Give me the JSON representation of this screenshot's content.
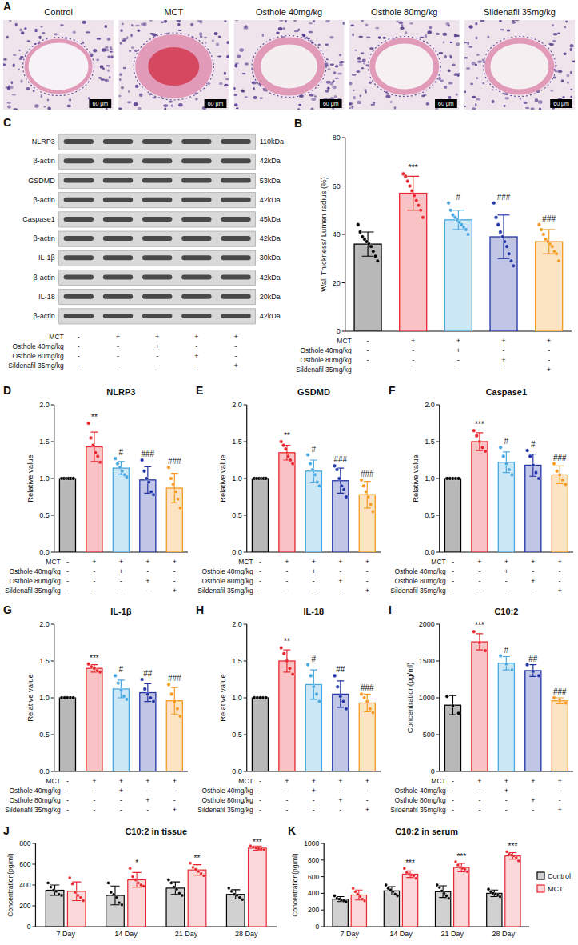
{
  "images": {
    "letter": "A",
    "labels": [
      "Control",
      "MCT",
      "Osthole 40mg/kg",
      "Osthole 80mg/kg",
      "Sildenafil 35mg/kg"
    ],
    "scale_bar": "60 μm"
  },
  "blot": {
    "letter": "C",
    "rows": [
      {
        "protein": "NLRP3",
        "size": "110kDa"
      },
      {
        "protein": "β-actin",
        "size": "42kDa"
      },
      {
        "protein": "GSDMD",
        "size": "53kDa"
      },
      {
        "protein": "β-actin",
        "size": "42kDa"
      },
      {
        "protein": "Caspase1",
        "size": "45kDa"
      },
      {
        "protein": "β-actin",
        "size": "42kDa"
      },
      {
        "protein": "IL-1β",
        "size": "30kDa"
      },
      {
        "protein": "β-actin",
        "size": "42kDa"
      },
      {
        "protein": "IL-18",
        "size": "20kDa"
      },
      {
        "protein": "β-actin",
        "size": "42kDa"
      }
    ]
  },
  "treatment_table": {
    "rows": [
      {
        "label": "MCT",
        "signs": [
          "-",
          "+",
          "+",
          "+",
          "+"
        ]
      },
      {
        "label": "Osthole 40mg/kg",
        "signs": [
          "-",
          "-",
          "+",
          "-",
          "-"
        ]
      },
      {
        "label": "Osthole 80mg/kg",
        "signs": [
          "-",
          "-",
          "-",
          "+",
          "-"
        ]
      },
      {
        "label": "Sildenafil 35mg/kg",
        "signs": [
          "-",
          "-",
          "-",
          "-",
          "+"
        ]
      }
    ]
  },
  "chart_data": [
    {
      "letter": "B",
      "type": "bar",
      "y_label": "Wall Thickness/ Lumen radius (%)",
      "categories": [
        null,
        null,
        null,
        null,
        null
      ],
      "values": [
        36,
        57,
        46,
        39,
        37
      ],
      "errors": [
        5,
        7,
        4,
        9,
        5
      ],
      "points": [
        [
          44,
          41,
          39,
          38,
          37,
          36,
          35,
          33,
          31,
          29
        ],
        [
          65,
          64,
          62,
          60,
          58,
          56,
          54,
          52,
          50,
          47
        ],
        [
          53,
          50,
          48,
          47,
          46,
          45,
          44,
          43,
          42,
          40
        ],
        [
          53,
          47,
          44,
          41,
          39,
          37,
          35,
          32,
          29,
          27
        ],
        [
          44,
          42,
          40,
          38,
          37,
          36,
          35,
          33,
          32,
          29
        ]
      ],
      "significance": [
        null,
        "***",
        "#",
        "###",
        "###"
      ],
      "colors": [
        "#000000",
        "#e8262e",
        "#4aa8e0",
        "#2233a5",
        "#f39b24"
      ],
      "ylim": [
        0,
        80
      ],
      "yticks": [
        0,
        20,
        40,
        60,
        80
      ]
    },
    {
      "letter": "D",
      "type": "bar",
      "title": "NLRP3",
      "y_label": "Relative value",
      "categories": [
        null,
        null,
        null,
        null,
        null
      ],
      "values": [
        1.0,
        1.43,
        1.14,
        0.98,
        0.87
      ],
      "errors": [
        0,
        0.2,
        0.09,
        0.18,
        0.2
      ],
      "points": [
        [
          1,
          1,
          1,
          1,
          1,
          1
        ],
        [
          1.75,
          1.55,
          1.45,
          1.35,
          1.3,
          1.22
        ],
        [
          1.27,
          1.2,
          1.15,
          1.1,
          1.05,
          1.02
        ],
        [
          1.25,
          1.1,
          1.0,
          0.95,
          0.82,
          0.78
        ],
        [
          1.15,
          1.0,
          0.92,
          0.82,
          0.72,
          0.6
        ]
      ],
      "significance": [
        null,
        "**",
        "#",
        "###",
        "###"
      ],
      "colors": [
        "#000000",
        "#e8262e",
        "#4aa8e0",
        "#2233a5",
        "#f39b24"
      ],
      "ylim": [
        0,
        2
      ],
      "yticks": [
        {
          "value": 0,
          "label": "0.0"
        },
        {
          "value": 0.5,
          "label": "0.5"
        },
        {
          "value": 1,
          "label": "1.0"
        },
        {
          "value": 1.5,
          "label": "1.5"
        },
        {
          "value": 2,
          "label": "2.0"
        }
      ]
    },
    {
      "letter": "E",
      "type": "bar",
      "title": "GSDMD",
      "y_label": "Relative value",
      "categories": [
        null,
        null,
        null,
        null,
        null
      ],
      "values": [
        1.0,
        1.35,
        1.1,
        0.97,
        0.78
      ],
      "errors": [
        0,
        0.1,
        0.15,
        0.17,
        0.18
      ],
      "points": [
        [
          1,
          1,
          1,
          1,
          1,
          1
        ],
        [
          1.5,
          1.45,
          1.4,
          1.3,
          1.25,
          1.2
        ],
        [
          1.32,
          1.2,
          1.12,
          1.05,
          0.95,
          0.9
        ],
        [
          1.17,
          1.12,
          1.0,
          0.9,
          0.85,
          0.75
        ],
        [
          0.98,
          0.9,
          0.82,
          0.75,
          0.65,
          0.55
        ]
      ],
      "significance": [
        null,
        "**",
        "#",
        "###",
        "###"
      ],
      "colors": [
        "#000000",
        "#e8262e",
        "#4aa8e0",
        "#2233a5",
        "#f39b24"
      ],
      "ylim": [
        0,
        2
      ],
      "yticks": [
        {
          "value": 0,
          "label": "0.0"
        },
        {
          "value": 0.5,
          "label": "0.5"
        },
        {
          "value": 1,
          "label": "1.0"
        },
        {
          "value": 1.5,
          "label": "1.5"
        },
        {
          "value": 2,
          "label": "2.0"
        }
      ]
    },
    {
      "letter": "F",
      "type": "bar",
      "title": "Caspase1",
      "y_label": "Relative value",
      "categories": [
        null,
        null,
        null,
        null,
        null
      ],
      "values": [
        1.0,
        1.5,
        1.22,
        1.18,
        1.05
      ],
      "errors": [
        0,
        0.12,
        0.14,
        0.15,
        0.12
      ],
      "points": [
        [
          1,
          1,
          1,
          1,
          1
        ],
        [
          1.65,
          1.58,
          1.5,
          1.42,
          1.37
        ],
        [
          1.42,
          1.3,
          1.2,
          1.12,
          1.05
        ],
        [
          1.38,
          1.3,
          1.18,
          1.08,
          1.0
        ],
        [
          1.2,
          1.1,
          1.05,
          0.98,
          0.92
        ]
      ],
      "significance": [
        null,
        "***",
        "#",
        "#",
        "###"
      ],
      "colors": [
        "#000000",
        "#e8262e",
        "#4aa8e0",
        "#2233a5",
        "#f39b24"
      ],
      "ylim": [
        0,
        2
      ],
      "yticks": [
        {
          "value": 0,
          "label": "0.0"
        },
        {
          "value": 0.5,
          "label": "0.5"
        },
        {
          "value": 1,
          "label": "1.0"
        },
        {
          "value": 1.5,
          "label": "1.5"
        },
        {
          "value": 2,
          "label": "2.0"
        }
      ]
    },
    {
      "letter": "G",
      "type": "bar",
      "title": "IL-1β",
      "y_label": "Relative value",
      "categories": [
        null,
        null,
        null,
        null,
        null
      ],
      "values": [
        1.0,
        1.4,
        1.12,
        1.07,
        0.96
      ],
      "errors": [
        0,
        0.05,
        0.12,
        0.12,
        0.18
      ],
      "points": [
        [
          1,
          1,
          1,
          1,
          1
        ],
        [
          1.46,
          1.42,
          1.4,
          1.37,
          1.35
        ],
        [
          1.3,
          1.2,
          1.1,
          1.02,
          0.98
        ],
        [
          1.25,
          1.12,
          1.05,
          1.0,
          0.95
        ],
        [
          1.18,
          1.05,
          0.95,
          0.85,
          0.75
        ]
      ],
      "significance": [
        null,
        "***",
        "#",
        "##",
        "###"
      ],
      "colors": [
        "#000000",
        "#e8262e",
        "#4aa8e0",
        "#2233a5",
        "#f39b24"
      ],
      "ylim": [
        0,
        2
      ],
      "yticks": [
        {
          "value": 0,
          "label": "0.0"
        },
        {
          "value": 0.5,
          "label": "0.5"
        },
        {
          "value": 1,
          "label": "1.0"
        },
        {
          "value": 1.5,
          "label": "1.5"
        },
        {
          "value": 2,
          "label": "2.0"
        }
      ]
    },
    {
      "letter": "H",
      "type": "bar",
      "title": "IL-18",
      "y_label": "Relative value",
      "categories": [
        null,
        null,
        null,
        null,
        null
      ],
      "values": [
        1.0,
        1.5,
        1.18,
        1.05,
        0.93
      ],
      "errors": [
        0,
        0.15,
        0.2,
        0.18,
        0.12
      ],
      "points": [
        [
          1,
          1,
          1,
          1,
          1
        ],
        [
          1.68,
          1.6,
          1.5,
          1.4,
          1.32
        ],
        [
          1.45,
          1.3,
          1.15,
          1.05,
          0.95
        ],
        [
          1.3,
          1.15,
          1.02,
          0.95,
          0.85
        ],
        [
          1.05,
          1.0,
          0.95,
          0.85,
          0.8
        ]
      ],
      "significance": [
        null,
        "**",
        "#",
        "##",
        "###"
      ],
      "colors": [
        "#000000",
        "#e8262e",
        "#4aa8e0",
        "#2233a5",
        "#f39b24"
      ],
      "ylim": [
        0,
        2
      ],
      "yticks": [
        {
          "value": 0,
          "label": "0.0"
        },
        {
          "value": 0.5,
          "label": "0.5"
        },
        {
          "value": 1,
          "label": "1.0"
        },
        {
          "value": 1.5,
          "label": "1.5"
        },
        {
          "value": 2,
          "label": "2.0"
        }
      ]
    },
    {
      "letter": "I",
      "type": "bar",
      "title": "C10:2",
      "y_label": "Concentration(pg/ml)",
      "categories": [
        null,
        null,
        null,
        null,
        null
      ],
      "values": [
        900,
        1760,
        1470,
        1370,
        960
      ],
      "errors": [
        130,
        110,
        90,
        80,
        40
      ],
      "points": [
        [
          1020,
          890,
          790
        ],
        [
          1900,
          1750,
          1640
        ],
        [
          1570,
          1460,
          1380
        ],
        [
          1450,
          1360,
          1300
        ],
        [
          1000,
          960,
          930
        ]
      ],
      "significance": [
        null,
        "***",
        "#",
        "##",
        "###"
      ],
      "colors": [
        "#000000",
        "#e8262e",
        "#4aa8e0",
        "#2233a5",
        "#f39b24"
      ],
      "ylim": [
        0,
        2000
      ],
      "yticks": [
        0,
        500,
        1000,
        1500,
        2000
      ]
    },
    {
      "letter": "J",
      "type": "bar",
      "title": "C10:2 in tissue",
      "y_label": "Concentration(pg/ml)",
      "categories": [
        "7 Day",
        "14 Day",
        "21 Day",
        "28 Day"
      ],
      "series": [
        {
          "color": "#000000",
          "values": [
            350,
            300,
            370,
            310
          ],
          "errors": [
            50,
            90,
            60,
            45
          ],
          "points": [
            [
              420,
              380,
              350,
              340,
              310,
              300
            ],
            [
              420,
              330,
              310,
              280,
              230,
              210
            ],
            [
              450,
              420,
              380,
              360,
              320,
              300
            ],
            [
              370,
              340,
              310,
              300,
              280,
              260
            ]
          ]
        },
        {
          "color": "#e8262e",
          "values": [
            340,
            450,
            545,
            755
          ],
          "errors": [
            90,
            70,
            50,
            20
          ],
          "points": [
            [
              470,
              410,
              330,
              300,
              280,
              250
            ],
            [
              560,
              480,
              450,
              420,
              400,
              390
            ],
            [
              610,
              570,
              550,
              530,
              510,
              490
            ],
            [
              775,
              765,
              755,
              750,
              745,
              740
            ]
          ],
          "significance": [
            null,
            "*",
            "**",
            "***"
          ]
        }
      ],
      "ylim": [
        0,
        800
      ],
      "yticks": [
        0,
        200,
        400,
        600,
        800
      ]
    },
    {
      "letter": "K",
      "type": "bar",
      "title": "C10:2 in serum",
      "y_label": "Concentration(pg/ml)",
      "categories": [
        "7 Day",
        "14 Day",
        "21 Day",
        "28 Day"
      ],
      "series": [
        {
          "name": "Control",
          "color": "#000000",
          "values": [
            330,
            430,
            420,
            400
          ],
          "errors": [
            30,
            50,
            70,
            40
          ],
          "points": [
            [
              370,
              340,
              330,
              320,
              310,
              300
            ],
            [
              500,
              460,
              440,
              420,
              390,
              370
            ],
            [
              500,
              470,
              430,
              400,
              370,
              340
            ],
            [
              450,
              420,
              400,
              390,
              380,
              360
            ]
          ]
        },
        {
          "name": "MCT",
          "color": "#e8262e",
          "values": [
            380,
            630,
            710,
            850
          ],
          "errors": [
            60,
            40,
            50,
            40
          ],
          "points": [
            [
              460,
              420,
              390,
              360,
              330,
              310
            ],
            [
              700,
              650,
              630,
              620,
              610,
              580
            ],
            [
              780,
              740,
              710,
              700,
              690,
              660
            ],
            [
              900,
              870,
              860,
              850,
              830,
              790
            ]
          ],
          "significance": [
            null,
            "***",
            "***",
            "***"
          ]
        }
      ],
      "legend": "right",
      "ylim": [
        0,
        1000
      ],
      "yticks": [
        0,
        200,
        400,
        600,
        800,
        1000
      ]
    }
  ]
}
